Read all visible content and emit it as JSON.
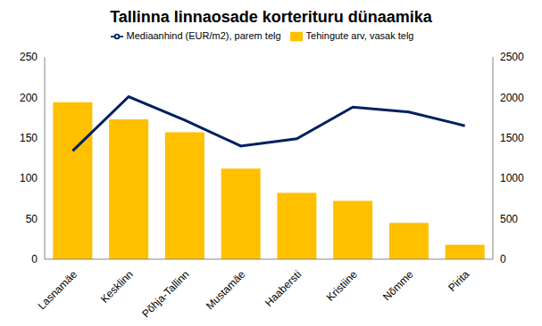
{
  "chart_data": {
    "type": "bar",
    "title": "Tallinna linnaosade korterituru dünaamika",
    "categories": [
      "Lasnamäe",
      "Kesklinn",
      "Põhja-Tallinn",
      "Mustamäe",
      "Haabersti",
      "Kristiine",
      "Nõmme",
      "Pirita"
    ],
    "series": [
      {
        "name": "Tehingute arv, vasak telg",
        "type": "bar",
        "color": "#FFC000",
        "values": [
          194,
          173,
          157,
          112,
          82,
          72,
          45,
          18
        ]
      },
      {
        "name": "Mediaanhind (EUR/m2), parem telg",
        "type": "line",
        "axis": "y2",
        "color": "#002060",
        "values": [
          1340,
          2010,
          1720,
          1400,
          1490,
          1880,
          1820,
          1650
        ]
      }
    ],
    "ylim": [
      0,
      250
    ],
    "yticks": [
      0,
      50,
      100,
      150,
      200,
      250
    ],
    "y2lim": [
      0,
      2500
    ],
    "y2ticks": [
      0,
      500,
      1000,
      1500,
      2000,
      2500
    ],
    "grid": false,
    "legend": "top"
  }
}
